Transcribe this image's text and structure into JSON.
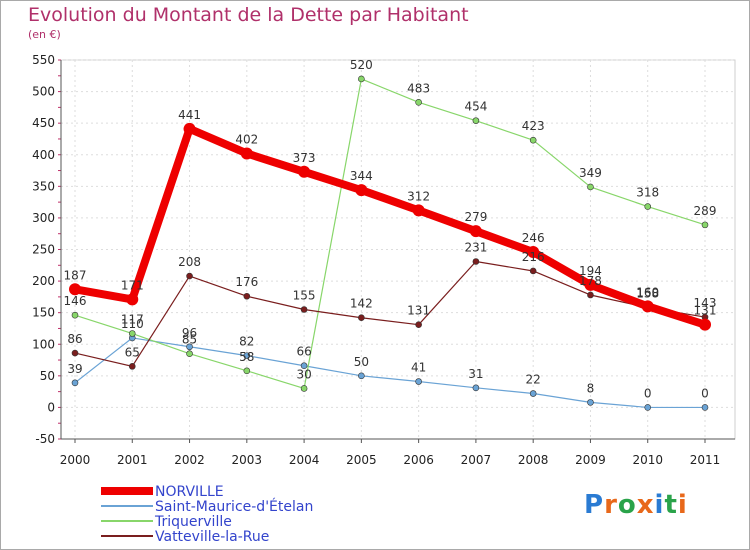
{
  "title": "Evolution du Montant de la Dette par Habitant",
  "subtitle": "(en €)",
  "logo": {
    "text": "Proxiti",
    "letters": [
      {
        "ch": "P",
        "color": "#2a7bd3"
      },
      {
        "ch": "r",
        "color": "#e8681a"
      },
      {
        "ch": "o",
        "color": "#2aa34a"
      },
      {
        "ch": "x",
        "color": "#e8681a"
      },
      {
        "ch": "i",
        "color": "#2a7bd3"
      },
      {
        "ch": "t",
        "color": "#2aa34a"
      },
      {
        "ch": "i",
        "color": "#e8681a"
      }
    ]
  },
  "chart_data": {
    "type": "line",
    "x": [
      "2000",
      "2001",
      "2002",
      "2003",
      "2004",
      "2005",
      "2006",
      "2007",
      "2008",
      "2009",
      "2010",
      "2011"
    ],
    "ylim": [
      -50,
      550
    ],
    "yticks": [
      -50,
      0,
      50,
      100,
      150,
      200,
      250,
      300,
      350,
      400,
      450,
      500,
      550
    ],
    "grid": true,
    "legend_position": "bottom-left",
    "series": [
      {
        "name": "NORVILLE",
        "color": "#ee0000",
        "values": [
          187,
          171,
          441,
          402,
          373,
          344,
          312,
          279,
          246,
          194,
          160,
          131
        ],
        "labels": [
          "187",
          "171",
          "441",
          "402",
          "373",
          "344",
          "312",
          "279",
          "246",
          "194",
          "160",
          "131"
        ]
      },
      {
        "name": "Saint-Maurice-d'Ételan",
        "color": "#6aa3d5",
        "values": [
          39,
          110,
          96,
          82,
          66,
          50,
          41,
          31,
          22,
          8,
          0,
          0
        ],
        "labels": [
          "39",
          "110",
          "96",
          "82",
          "66",
          "50",
          "41",
          "31",
          "22",
          "8",
          "0",
          "0"
        ]
      },
      {
        "name": "Triquerville",
        "color": "#88d66a",
        "values": [
          146,
          117,
          85,
          58,
          30,
          520,
          483,
          454,
          423,
          349,
          318,
          289
        ],
        "labels": [
          "146",
          "117",
          "85",
          "58",
          "30",
          "520",
          "483",
          "454",
          "423",
          "349",
          "318",
          "289"
        ]
      },
      {
        "name": "Vatteville-la-Rue",
        "color": "#7a1e1e",
        "values": [
          86,
          65,
          208,
          176,
          155,
          142,
          131,
          231,
          216,
          178,
          158,
          143
        ],
        "labels": [
          "86",
          "65",
          "208",
          "176",
          "155",
          "142",
          "131",
          "231",
          "216",
          "178",
          "158",
          "143"
        ]
      }
    ]
  }
}
